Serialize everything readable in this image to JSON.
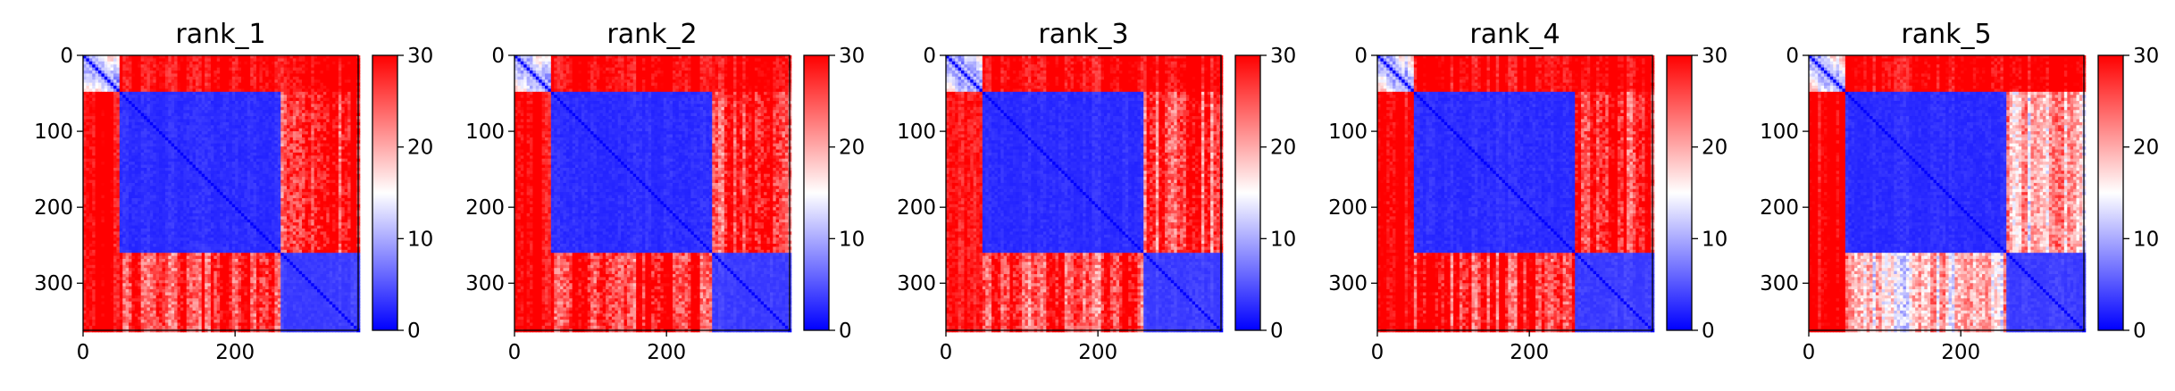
{
  "chart_data": {
    "type": "heatmap",
    "colormap": "bwr",
    "colors": {
      "low": "#0000ff",
      "mid": "#ffffff",
      "high": "#ff0000",
      "axis": "#000000"
    },
    "xlim": [
      0,
      362
    ],
    "ylim": [
      362,
      0
    ],
    "x_ticks": [
      0,
      200
    ],
    "y_ticks": [
      0,
      100,
      200,
      300
    ],
    "colorbar": {
      "vmin": 0,
      "vmax": 30,
      "ticks": [
        0,
        10,
        20,
        30
      ]
    },
    "domains": [
      {
        "start": 0,
        "end": 50
      },
      {
        "start": 50,
        "end": 262
      },
      {
        "start": 262,
        "end": 362
      }
    ],
    "panels": [
      {
        "title": "rank_1",
        "x_tick_labels": [
          "0",
          "200"
        ],
        "y_tick_labels": [
          "0",
          "100",
          "200",
          "300"
        ],
        "cbar_tick_labels": [
          "0",
          "10",
          "20",
          "30"
        ],
        "inter_domain_error": 30,
        "intra_domain_error": 2,
        "domain3_error": 3,
        "cross_d2_d3_error": 28
      },
      {
        "title": "rank_2",
        "x_tick_labels": [
          "0",
          "200"
        ],
        "y_tick_labels": [
          "0",
          "100",
          "200",
          "300"
        ],
        "cbar_tick_labels": [
          "0",
          "10",
          "20",
          "30"
        ],
        "inter_domain_error": 30,
        "intra_domain_error": 2,
        "domain3_error": 3,
        "cross_d2_d3_error": 28
      },
      {
        "title": "rank_3",
        "x_tick_labels": [
          "0",
          "200"
        ],
        "y_tick_labels": [
          "0",
          "100",
          "200",
          "300"
        ],
        "cbar_tick_labels": [
          "0",
          "10",
          "20",
          "30"
        ],
        "inter_domain_error": 30,
        "intra_domain_error": 2,
        "domain3_error": 3,
        "cross_d2_d3_error": 27
      },
      {
        "title": "rank_4",
        "x_tick_labels": [
          "0",
          "200"
        ],
        "y_tick_labels": [
          "0",
          "100",
          "200",
          "300"
        ],
        "cbar_tick_labels": [
          "0",
          "10",
          "20",
          "30"
        ],
        "inter_domain_error": 30,
        "intra_domain_error": 2,
        "domain3_error": 3,
        "cross_d2_d3_error": 28
      },
      {
        "title": "rank_5",
        "x_tick_labels": [
          "0",
          "200"
        ],
        "y_tick_labels": [
          "0",
          "100",
          "200",
          "300"
        ],
        "cbar_tick_labels": [
          "0",
          "10",
          "20",
          "30"
        ],
        "inter_domain_error": 30,
        "intra_domain_error": 2,
        "domain3_error": 3,
        "cross_d2_d3_error": 18
      }
    ]
  }
}
